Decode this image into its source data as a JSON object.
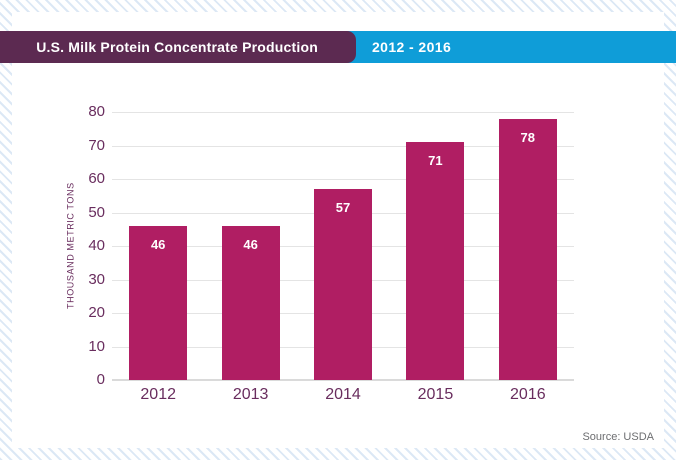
{
  "header": {
    "title": "U.S. Milk Protein Concentrate Production",
    "period": "2012 - 2016"
  },
  "chart_data": {
    "type": "bar",
    "categories": [
      "2012",
      "2013",
      "2014",
      "2015",
      "2016"
    ],
    "values": [
      46,
      46,
      57,
      71,
      78
    ],
    "title": "U.S. Milk Protein Concentrate Production",
    "subtitle": "2012 - 2016",
    "xlabel": "",
    "ylabel": "THOUSAND METRIC TONS",
    "ylim": [
      0,
      80
    ],
    "ytick_step": 10,
    "yticks": [
      0,
      10,
      20,
      30,
      40,
      50,
      60,
      70,
      80
    ],
    "grid": true,
    "legend": "none",
    "value_labels_shown": true
  },
  "source": {
    "label": "Source: USDA"
  },
  "colors": {
    "banner_purple": "#5c2a51",
    "banner_blue": "#0f9dd8",
    "bar": "#b01e63",
    "axis_text": "#692d5e",
    "value_label": "#ffffff",
    "gridline": "#e4e4e4",
    "source_text": "#6d6e71",
    "stripe": "#dce8f5",
    "card_background": "#ffffff"
  }
}
